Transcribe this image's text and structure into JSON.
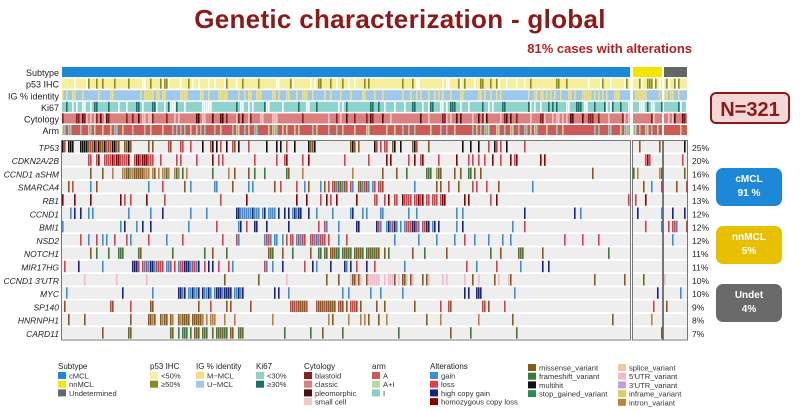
{
  "title": "Genetic characterization - global",
  "subtitle": "81% cases with alterations",
  "n_label": "N=321",
  "badges": [
    {
      "name": "cMCL",
      "pct": "91 %",
      "color": "#1e88d8"
    },
    {
      "name": "nnMCL",
      "pct": "5%",
      "color": "#e8c000"
    },
    {
      "name": "Undet",
      "pct": "4%",
      "color": "#6a6a6a"
    }
  ],
  "chart_data": {
    "type": "heatmap",
    "groups": [
      {
        "name": "cMCL",
        "color": "#1e88d8"
      },
      {
        "name": "nnMCL",
        "color": "#f2e600"
      },
      {
        "name": "Undetermined",
        "color": "#666666"
      }
    ],
    "annotation_tracks": [
      "Subtype",
      "p53 IHC",
      "IG % identity",
      "Ki67",
      "Cytology",
      "Arm"
    ],
    "genes": [
      {
        "name": "TP53",
        "pct": "25%",
        "pct_value": 25
      },
      {
        "name": "CDKN2A/2B",
        "pct": "20%",
        "pct_value": 20
      },
      {
        "name": "CCND1 aSHM",
        "pct": "16%",
        "pct_value": 16
      },
      {
        "name": "SMARCA4",
        "pct": "14%",
        "pct_value": 14
      },
      {
        "name": "RB1",
        "pct": "13%",
        "pct_value": 13
      },
      {
        "name": "CCND1",
        "pct": "12%",
        "pct_value": 12
      },
      {
        "name": "BMI1",
        "pct": "12%",
        "pct_value": 12
      },
      {
        "name": "NSD2",
        "pct": "12%",
        "pct_value": 12
      },
      {
        "name": "NOTCH1",
        "pct": "11%",
        "pct_value": 11
      },
      {
        "name": "MIR17HG",
        "pct": "11%",
        "pct_value": 11
      },
      {
        "name": "CCND1 3'UTR",
        "pct": "10%",
        "pct_value": 10
      },
      {
        "name": "MYC",
        "pct": "10%",
        "pct_value": 10
      },
      {
        "name": "SP140",
        "pct": "9%",
        "pct_value": 9
      },
      {
        "name": "HNRNPH1",
        "pct": "8%",
        "pct_value": 8
      },
      {
        "name": "CARD11",
        "pct": "7%",
        "pct_value": 7
      }
    ],
    "legend": [
      {
        "title": "Subtype",
        "items": [
          {
            "label": "cMCL",
            "color": "#1e88d8"
          },
          {
            "label": "nnMCL",
            "color": "#f2e600"
          },
          {
            "label": "Undetermined",
            "color": "#666666"
          }
        ]
      },
      {
        "title": "p53 IHC",
        "items": [
          {
            "label": "<50%",
            "color": "#f5ef9c"
          },
          {
            "label": "≥50%",
            "color": "#8c8c1e"
          }
        ]
      },
      {
        "title": "IG % identity",
        "items": [
          {
            "label": "M−MCL",
            "color": "#f3e07a"
          },
          {
            "label": "U−MCL",
            "color": "#9ec8ec"
          }
        ]
      },
      {
        "title": "Ki67",
        "items": [
          {
            "label": "<30%",
            "color": "#8fd4cc"
          },
          {
            "label": "≥30%",
            "color": "#1f6f66"
          }
        ]
      },
      {
        "title": "Cytology",
        "items": [
          {
            "label": "blastoid",
            "color": "#8b2020"
          },
          {
            "label": "classic",
            "color": "#d98080"
          },
          {
            "label": "pleomorphic",
            "color": "#4a0f0f"
          },
          {
            "label": "small cell",
            "color": "#f0c8c8"
          }
        ]
      },
      {
        "title": "arm",
        "items": [
          {
            "label": "A",
            "color": "#cc5a5a"
          },
          {
            "label": "A+I",
            "color": "#b8d8a0"
          },
          {
            "label": "I",
            "color": "#8ccfc0"
          }
        ]
      },
      {
        "title": "Alterations",
        "items": [
          {
            "label": "gain",
            "color": "#3a8fd8"
          },
          {
            "label": "loss",
            "color": "#d6404a"
          },
          {
            "label": "high copy gain",
            "color": "#1a237e"
          },
          {
            "label": "homozygous copy loss",
            "color": "#8b0000"
          }
        ]
      },
      {
        "title": "",
        "items": [
          {
            "label": "missense_variant",
            "color": "#8a5a1a"
          },
          {
            "label": "frameshift_variant",
            "color": "#3a7a3a"
          },
          {
            "label": "multihit",
            "color": "#111111"
          },
          {
            "label": "stop_gained_variant",
            "color": "#2e8b57"
          }
        ]
      },
      {
        "title": "",
        "items": [
          {
            "label": "splice_variant",
            "color": "#f0c8a0"
          },
          {
            "label": "5'UTR_variant",
            "color": "#f4b8c8"
          },
          {
            "label": "3'UTR_variant",
            "color": "#c0a0d8"
          },
          {
            "label": "inframe_variant",
            "color": "#d8d060"
          },
          {
            "label": "intron_variant",
            "color": "#c08040"
          }
        ]
      }
    ]
  }
}
